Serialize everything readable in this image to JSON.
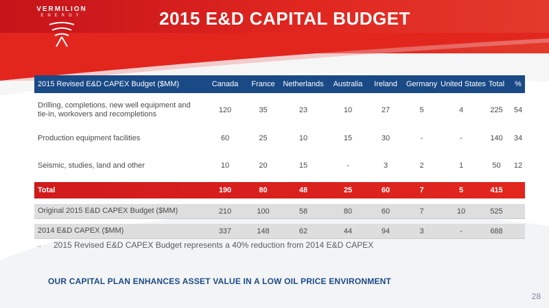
{
  "brand": {
    "name": "VERMILION",
    "sub": "ENERGY",
    "accent_color": "#e2261e",
    "header_blue": "#1a4a86"
  },
  "title": "2015 E&D CAPITAL BUDGET",
  "table": {
    "headers": [
      "2015 Revised E&D CAPEX Budget ($MM)",
      "Canada",
      "France",
      "Netherlands",
      "Australia",
      "Ireland",
      "Germany",
      "United States",
      "Total",
      "%"
    ],
    "rows": [
      [
        "Drilling, completions, new well equipment and tie-in, workovers and recompletions",
        "120",
        "35",
        "23",
        "10",
        "27",
        "5",
        "4",
        "225",
        "54"
      ],
      [
        "Production equipment facilities",
        "60",
        "25",
        "10",
        "15",
        "30",
        "-",
        "-",
        "140",
        "34"
      ],
      [
        "Seismic, studies, land and other",
        "10",
        "20",
        "15",
        "-",
        "3",
        "2",
        "1",
        "50",
        "12"
      ]
    ],
    "total": [
      "Total",
      "190",
      "80",
      "48",
      "25",
      "60",
      "7",
      "5",
      "415",
      ""
    ],
    "comparisons": [
      [
        "Original 2015 E&D CAPEX Budget ($MM)",
        "210",
        "100",
        "58",
        "80",
        "60",
        "7",
        "10",
        "525",
        ""
      ],
      [
        "2014 E&D CAPEX ($MM)",
        "337",
        "148",
        "62",
        "44",
        "94",
        "3",
        "-",
        "688",
        ""
      ]
    ]
  },
  "bullet": "2015 Revised E&D CAPEX Budget represents a 40% reduction from 2014 E&D CAPEX",
  "footer": "OUR CAPITAL PLAN ENHANCES ASSET VALUE IN A LOW OIL PRICE ENVIRONMENT",
  "page_number": "28"
}
